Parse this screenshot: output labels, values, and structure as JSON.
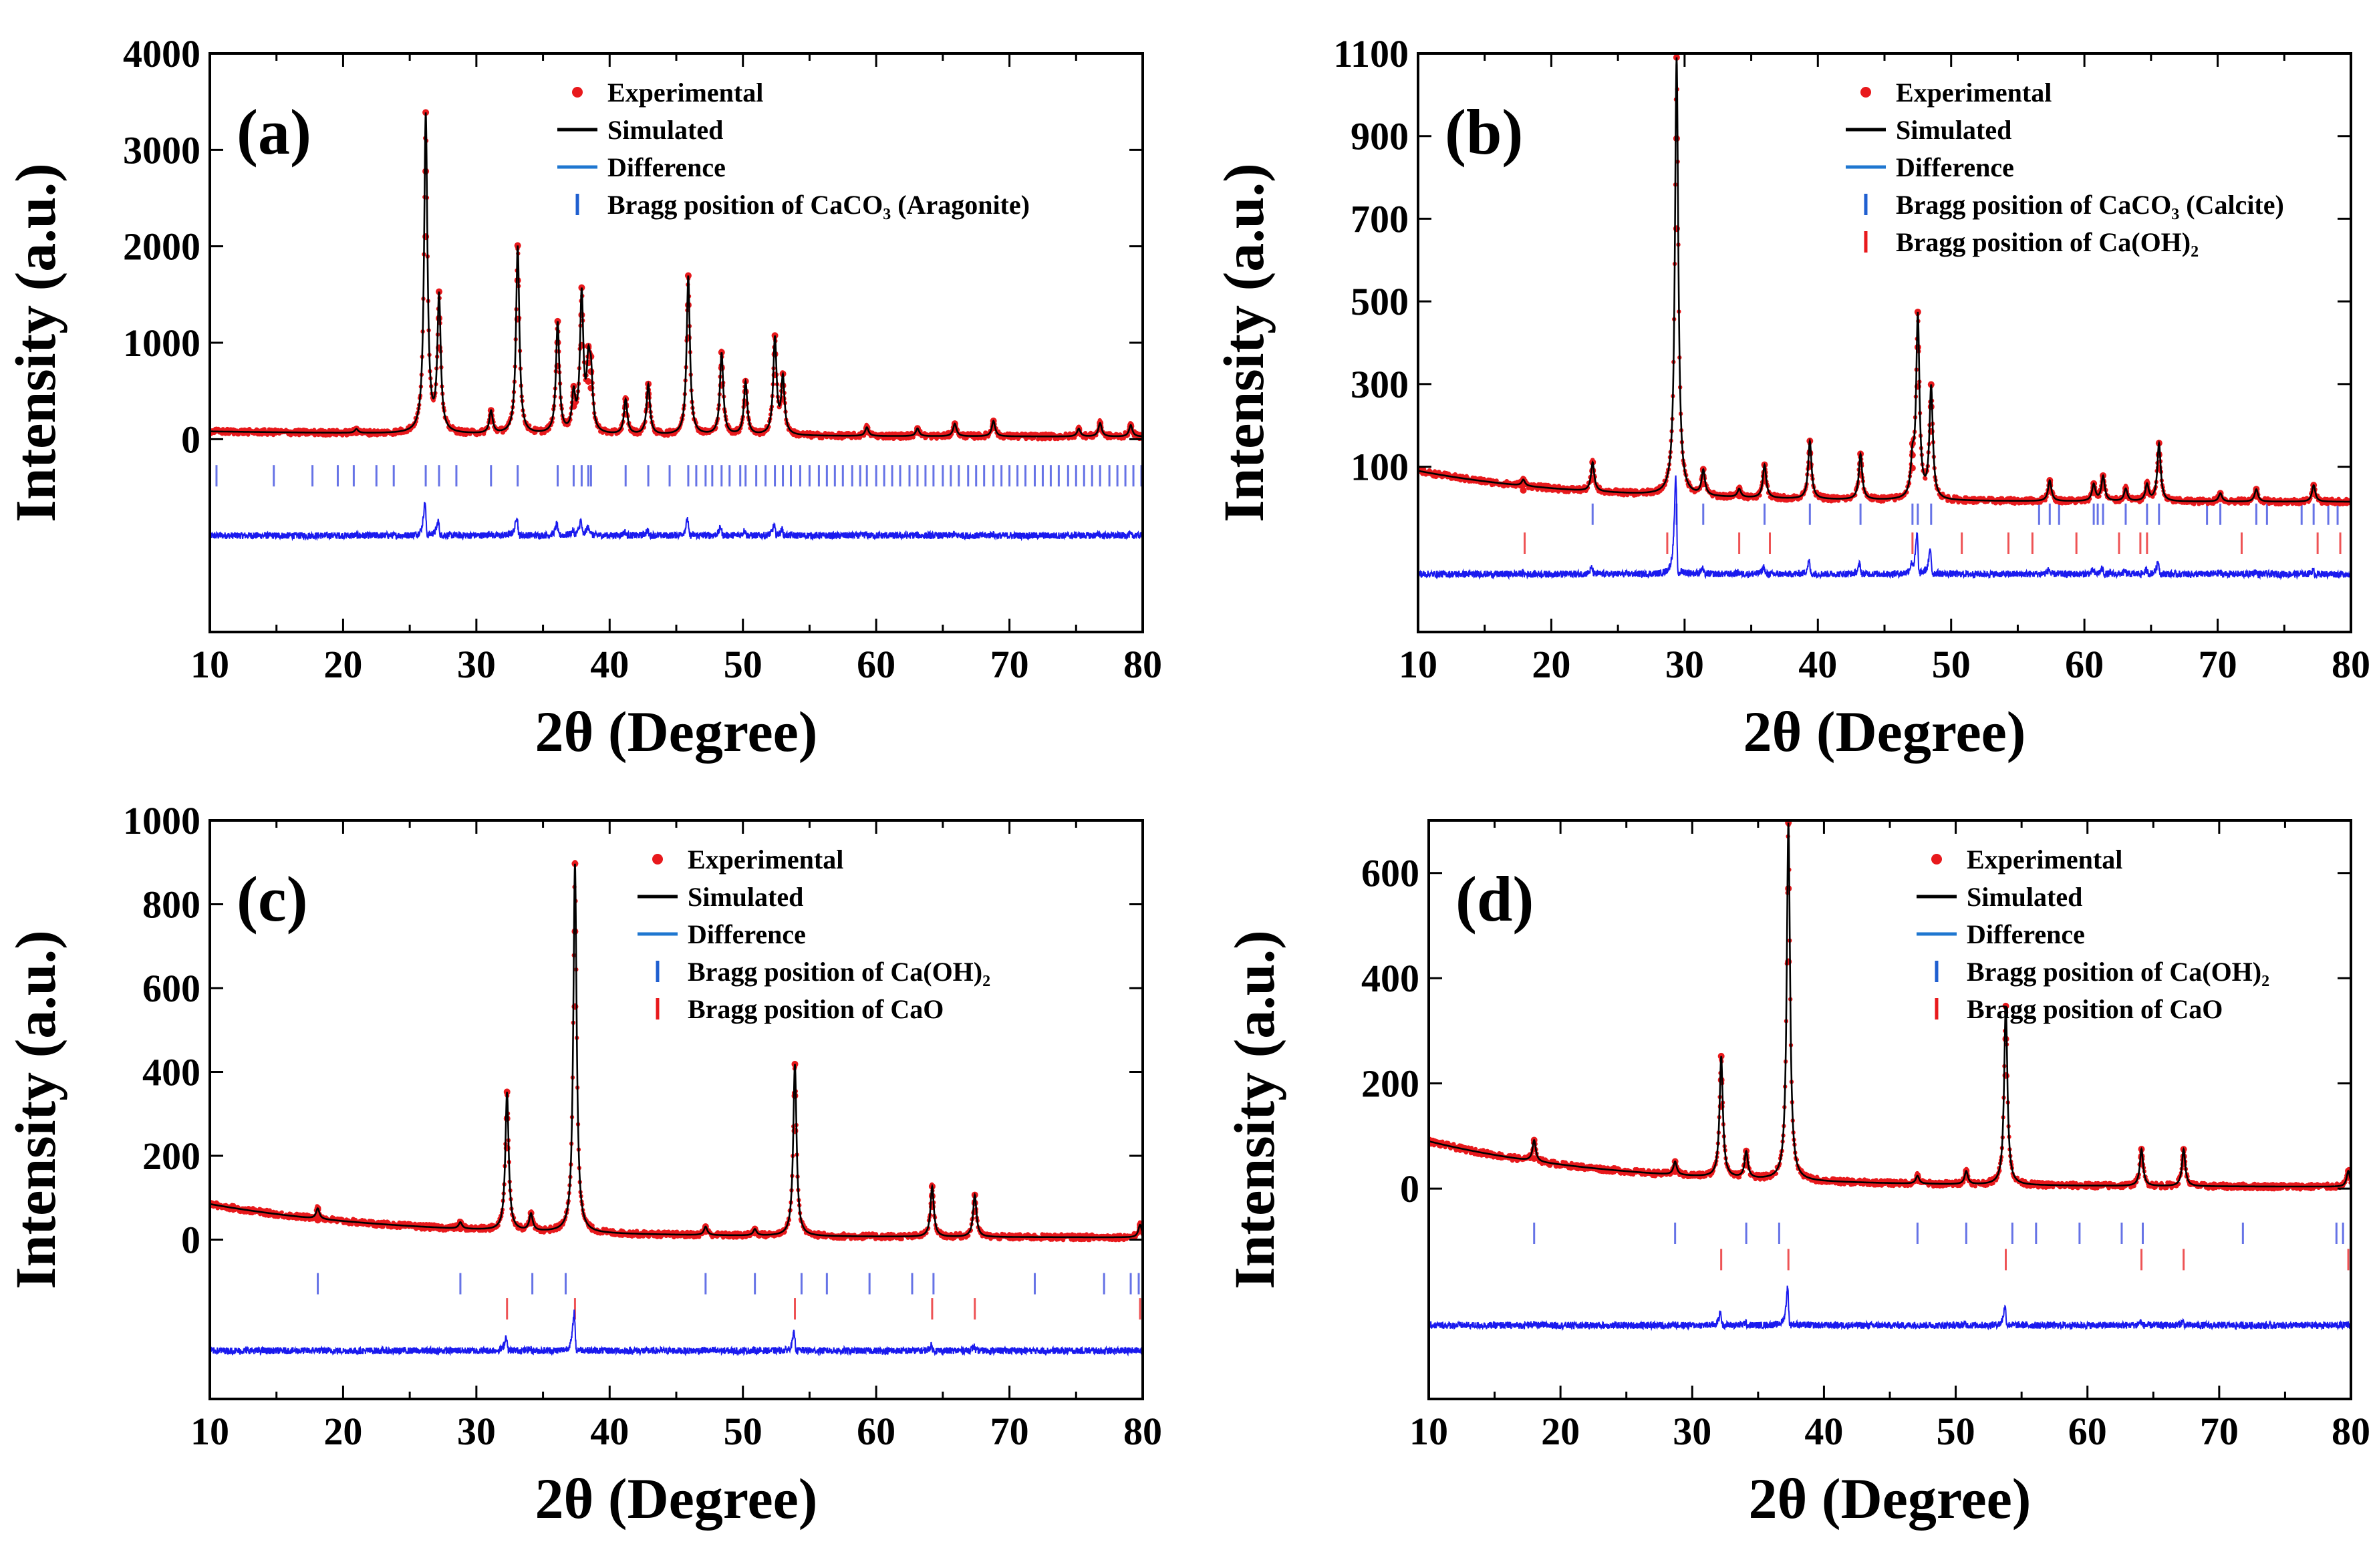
{
  "chart_data": [
    {
      "type": "line",
      "panel_label": "(a)",
      "xlabel": "2θ (Degree)",
      "ylabel": "Intensity (a.u.)",
      "xlim": [
        10,
        80
      ],
      "ylim": [
        -2000,
        4000
      ],
      "xticks": [
        "10",
        "20",
        "30",
        "40",
        "50",
        "60",
        "70",
        "80"
      ],
      "yticks": [
        {
          "value": 0,
          "label": "0"
        },
        {
          "value": 1000,
          "label": "1000"
        },
        {
          "value": 2000,
          "label": "2000"
        },
        {
          "value": 3000,
          "label": "3000"
        },
        {
          "value": 4000,
          "label": "4000"
        }
      ],
      "legend": [
        {
          "label": "Experimental",
          "marker": "dot",
          "color": "#e8191c"
        },
        {
          "label": "Simulated",
          "marker": "line",
          "color": "#000000"
        },
        {
          "label": "Difference",
          "marker": "line",
          "color": "#1f77d0"
        },
        {
          "label": "Bragg position of CaCO₃ (Aragonite)",
          "marker": "tick",
          "color": "#1f5fd0"
        }
      ],
      "baseline": {
        "type": "decay",
        "start": 80,
        "end": 20,
        "tau": 30
      },
      "peaks": [
        {
          "x": 21.0,
          "y": 40
        },
        {
          "x": 26.2,
          "y": 3300
        },
        {
          "x": 27.2,
          "y": 1400
        },
        {
          "x": 31.1,
          "y": 230
        },
        {
          "x": 33.1,
          "y": 1950
        },
        {
          "x": 36.1,
          "y": 1150
        },
        {
          "x": 37.3,
          "y": 380
        },
        {
          "x": 37.9,
          "y": 1420
        },
        {
          "x": 38.4,
          "y": 600
        },
        {
          "x": 38.6,
          "y": 520
        },
        {
          "x": 41.2,
          "y": 360
        },
        {
          "x": 42.9,
          "y": 520
        },
        {
          "x": 45.9,
          "y": 1650
        },
        {
          "x": 48.4,
          "y": 850
        },
        {
          "x": 50.2,
          "y": 550
        },
        {
          "x": 52.4,
          "y": 1000
        },
        {
          "x": 53.0,
          "y": 580
        },
        {
          "x": 59.3,
          "y": 90
        },
        {
          "x": 63.1,
          "y": 80
        },
        {
          "x": 65.9,
          "y": 130
        },
        {
          "x": 68.8,
          "y": 160
        },
        {
          "x": 75.2,
          "y": 80
        },
        {
          "x": 76.8,
          "y": 140
        },
        {
          "x": 79.1,
          "y": 120
        }
      ],
      "peak_width": 0.15,
      "bragg_sets": [
        {
          "phase": "CaCO₃ (Aragonite)",
          "color": "#3344dd",
          "y_level": -380,
          "positions": [
            10.5,
            14.8,
            17.7,
            19.6,
            20.8,
            22.5,
            23.8,
            26.2,
            27.2,
            28.5,
            31.1,
            33.1,
            36.1,
            37.3,
            37.9,
            38.4,
            38.6,
            41.2,
            42.9,
            44.5,
            45.9,
            46.5,
            47.2,
            47.7,
            48.4,
            49.0,
            49.8,
            50.2,
            51.0,
            51.7,
            52.4,
            53.0,
            53.6,
            54.3,
            55.0,
            55.7,
            56.3,
            56.9,
            57.5,
            58.2,
            58.8,
            59.3,
            60.0,
            60.6,
            61.2,
            61.8,
            62.5,
            63.1,
            63.7,
            64.3,
            65.0,
            65.6,
            66.2,
            66.9,
            67.5,
            68.1,
            68.8,
            69.4,
            70.0,
            70.6,
            71.2,
            71.9,
            72.5,
            73.1,
            73.7,
            74.4,
            75.0,
            75.6,
            76.2,
            76.8,
            77.5,
            78.1,
            78.7,
            79.3,
            79.9
          ]
        }
      ],
      "difference_offset": -1000,
      "difference_scale": 0.12
    },
    {
      "type": "line",
      "panel_label": "(b)",
      "xlabel": "2θ (Degree)",
      "ylabel": "Intensity (a.u.)",
      "xlim": [
        10,
        80
      ],
      "ylim": [
        -300,
        1100
      ],
      "xticks": [
        "10",
        "20",
        "30",
        "40",
        "50",
        "60",
        "70",
        "80"
      ],
      "yticks": [
        {
          "value": 100,
          "label": "100"
        },
        {
          "value": 300,
          "label": "300"
        },
        {
          "value": 500,
          "label": "500"
        },
        {
          "value": 700,
          "label": "700"
        },
        {
          "value": 900,
          "label": "900"
        },
        {
          "value": 1100,
          "label": "1100"
        }
      ],
      "legend": [
        {
          "label": "Experimental",
          "marker": "dot",
          "color": "#e8191c"
        },
        {
          "label": "Simulated",
          "marker": "line",
          "color": "#000000"
        },
        {
          "label": "Difference",
          "marker": "line",
          "color": "#1f77d0"
        },
        {
          "label": "Bragg position of CaCO₃ (Calcite)",
          "marker": "tick",
          "color": "#1f5fd0"
        },
        {
          "label": "Bragg position of Ca(OH)₂",
          "marker": "tick",
          "color": "#e8191c"
        }
      ],
      "baseline": {
        "type": "decay",
        "start": 90,
        "end": 15,
        "tau": 12
      },
      "peaks": [
        {
          "x": 17.9,
          "y": 15
        },
        {
          "x": 23.1,
          "y": 70
        },
        {
          "x": 29.4,
          "y": 1060
        },
        {
          "x": 31.4,
          "y": 60
        },
        {
          "x": 34.1,
          "y": 20
        },
        {
          "x": 36.0,
          "y": 80
        },
        {
          "x": 39.4,
          "y": 140
        },
        {
          "x": 43.2,
          "y": 110
        },
        {
          "x": 47.1,
          "y": 80
        },
        {
          "x": 47.5,
          "y": 440
        },
        {
          "x": 48.5,
          "y": 270
        },
        {
          "x": 57.4,
          "y": 50
        },
        {
          "x": 60.7,
          "y": 40
        },
        {
          "x": 61.4,
          "y": 60
        },
        {
          "x": 63.1,
          "y": 30
        },
        {
          "x": 64.7,
          "y": 40
        },
        {
          "x": 65.6,
          "y": 140
        },
        {
          "x": 70.2,
          "y": 20
        },
        {
          "x": 72.9,
          "y": 30
        },
        {
          "x": 77.2,
          "y": 40
        }
      ],
      "peak_width": 0.15,
      "bragg_sets": [
        {
          "phase": "CaCO₃ (Calcite)",
          "color": "#3344dd",
          "y_level": -15,
          "positions": [
            23.1,
            29.4,
            31.4,
            36.0,
            39.4,
            43.2,
            47.1,
            47.5,
            48.5,
            56.6,
            57.4,
            58.1,
            60.7,
            61.0,
            61.4,
            63.1,
            64.7,
            65.6,
            69.2,
            70.2,
            72.9,
            73.7,
            76.3,
            77.2,
            78.3,
            79.0
          ]
        },
        {
          "phase": "Ca(OH)₂",
          "color": "#e8191c",
          "y_level": -85,
          "positions": [
            18.0,
            28.7,
            34.1,
            36.4,
            47.1,
            50.8,
            54.3,
            56.1,
            59.4,
            62.6,
            64.2,
            64.7,
            71.8,
            77.5,
            79.2
          ]
        }
      ],
      "difference_offset": -160,
      "difference_scale": 0.25
    },
    {
      "type": "line",
      "panel_label": "(c)",
      "xlabel": "2θ (Degree)",
      "ylabel": "Intensity (a.u.)",
      "xlim": [
        10,
        80
      ],
      "ylim": [
        -380,
        1000
      ],
      "xticks": [
        "10",
        "20",
        "30",
        "40",
        "50",
        "60",
        "70",
        "80"
      ],
      "yticks": [
        {
          "value": 0,
          "label": "0"
        },
        {
          "value": 200,
          "label": "200"
        },
        {
          "value": 400,
          "label": "400"
        },
        {
          "value": 600,
          "label": "600"
        },
        {
          "value": 800,
          "label": "800"
        },
        {
          "value": 1000,
          "label": "1000"
        }
      ],
      "legend": [
        {
          "label": "Experimental",
          "marker": "dot",
          "color": "#e8191c"
        },
        {
          "label": "Simulated",
          "marker": "line",
          "color": "#000000"
        },
        {
          "label": "Difference",
          "marker": "line",
          "color": "#1f77d0"
        },
        {
          "label": "Bragg position of Ca(OH)₂",
          "marker": "tick",
          "color": "#1f5fd0"
        },
        {
          "label": "Bragg position of CaO",
          "marker": "tick",
          "color": "#e8191c"
        }
      ],
      "baseline": {
        "type": "decay",
        "start": 85,
        "end": 5,
        "tau": 14
      },
      "peaks": [
        {
          "x": 18.1,
          "y": 25
        },
        {
          "x": 28.8,
          "y": 15
        },
        {
          "x": 32.3,
          "y": 330
        },
        {
          "x": 34.1,
          "y": 40
        },
        {
          "x": 37.4,
          "y": 880
        },
        {
          "x": 47.2,
          "y": 20
        },
        {
          "x": 50.9,
          "y": 15
        },
        {
          "x": 53.9,
          "y": 410
        },
        {
          "x": 64.2,
          "y": 120
        },
        {
          "x": 67.4,
          "y": 100
        },
        {
          "x": 79.8,
          "y": 30
        }
      ],
      "peak_width": 0.15,
      "bragg_sets": [
        {
          "phase": "Ca(OH)₂",
          "color": "#3344dd",
          "y_level": -105,
          "positions": [
            18.1,
            28.8,
            34.2,
            36.7,
            47.2,
            50.9,
            54.4,
            56.3,
            59.5,
            62.7,
            64.3,
            71.9,
            77.1,
            79.1,
            79.7
          ]
        },
        {
          "phase": "CaO",
          "color": "#e8191c",
          "y_level": -165,
          "positions": [
            32.3,
            37.4,
            53.9,
            64.2,
            67.4,
            79.8
          ]
        }
      ],
      "difference_offset": -265,
      "difference_scale": 0.12
    },
    {
      "type": "line",
      "panel_label": "(d)",
      "xlabel": "2θ (Degree)",
      "ylabel": "Intensity (a.u.)",
      "xlim": [
        10,
        80
      ],
      "ylim": [
        -400,
        700
      ],
      "xticks": [
        "10",
        "20",
        "30",
        "40",
        "50",
        "60",
        "70",
        "80"
      ],
      "yticks": [
        {
          "value": 0,
          "label": "0"
        },
        {
          "value": 200,
          "label": "200"
        },
        {
          "value": 400,
          "label": "400"
        },
        {
          "value": 600,
          "label": "600"
        }
      ],
      "legend": [
        {
          "label": "Experimental",
          "marker": "dot",
          "color": "#e8191c"
        },
        {
          "label": "Simulated",
          "marker": "line",
          "color": "#000000"
        },
        {
          "label": "Difference",
          "marker": "line",
          "color": "#1f77d0"
        },
        {
          "label": "Bragg position of Ca(OH)₂",
          "marker": "tick",
          "color": "#1f5fd0"
        },
        {
          "label": "Bragg position of CaO",
          "marker": "tick",
          "color": "#e8191c"
        }
      ],
      "baseline": {
        "type": "decay",
        "start": 90,
        "end": 3,
        "tau": 14
      },
      "peaks": [
        {
          "x": 18.0,
          "y": 40
        },
        {
          "x": 28.7,
          "y": 25
        },
        {
          "x": 32.2,
          "y": 230
        },
        {
          "x": 34.1,
          "y": 50
        },
        {
          "x": 37.3,
          "y": 680
        },
        {
          "x": 47.1,
          "y": 15
        },
        {
          "x": 50.8,
          "y": 25
        },
        {
          "x": 53.8,
          "y": 340
        },
        {
          "x": 64.1,
          "y": 70
        },
        {
          "x": 67.3,
          "y": 70
        },
        {
          "x": 79.8,
          "y": 30
        }
      ],
      "peak_width": 0.15,
      "bragg_sets": [
        {
          "phase": "Ca(OH)₂",
          "color": "#3344dd",
          "y_level": -85,
          "positions": [
            18.0,
            28.7,
            34.1,
            36.6,
            47.1,
            50.8,
            54.3,
            56.1,
            59.4,
            62.6,
            64.2,
            71.8,
            78.9,
            79.4
          ]
        },
        {
          "phase": "CaO",
          "color": "#e8191c",
          "y_level": -135,
          "positions": [
            32.2,
            37.3,
            53.8,
            64.1,
            67.3,
            79.8
          ]
        }
      ],
      "difference_offset": -260,
      "difference_scale": 0.12
    }
  ]
}
